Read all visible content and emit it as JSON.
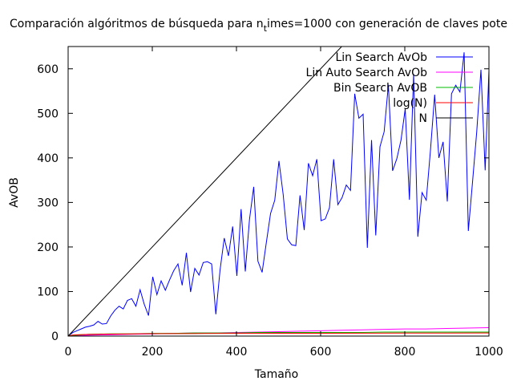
{
  "chart_data": {
    "type": "line",
    "title": "Comparación algóritmos de búsqueda para n",
    "title_sub": "t",
    "title_rest": "imes=1000 con generación de claves pote",
    "xlabel": "Tamaño",
    "ylabel": "AvOB",
    "xlim": [
      0,
      1000
    ],
    "ylim": [
      0,
      650
    ],
    "x_ticks": [
      0,
      200,
      400,
      600,
      800,
      1000
    ],
    "y_ticks": [
      0,
      100,
      200,
      300,
      400,
      500,
      600
    ],
    "grid": false,
    "legend_position": "top-right",
    "series": [
      {
        "name": "Lin Search AvOb",
        "color": "#0000ff",
        "x": [
          1,
          11,
          21,
          31,
          41,
          51,
          61,
          71,
          81,
          91,
          101,
          111,
          121,
          131,
          141,
          151,
          161,
          171,
          181,
          191,
          201,
          211,
          221,
          231,
          241,
          251,
          261,
          271,
          281,
          291,
          301,
          311,
          321,
          331,
          341,
          351,
          361,
          371,
          381,
          391,
          401,
          411,
          421,
          431,
          441,
          451,
          461,
          471,
          481,
          491,
          501,
          511,
          521,
          531,
          541,
          551,
          561,
          571,
          581,
          591,
          601,
          611,
          621,
          631,
          641,
          651,
          661,
          671,
          681,
          691,
          701,
          711,
          721,
          731,
          741,
          751,
          761,
          771,
          781,
          791,
          801,
          811,
          821,
          831,
          841,
          851,
          861,
          871,
          881,
          891,
          901,
          911,
          921,
          931,
          941,
          951,
          961,
          971,
          981,
          991,
          1000
        ],
        "y": [
          1,
          8,
          12,
          16,
          20,
          22,
          25,
          33,
          27,
          28,
          45,
          58,
          67,
          61,
          80,
          84,
          67,
          104,
          71,
          46,
          133,
          93,
          124,
          103,
          126,
          147,
          162,
          114,
          187,
          99,
          152,
          137,
          165,
          167,
          162,
          49,
          148,
          220,
          180,
          246,
          135,
          285,
          145,
          262,
          335,
          168,
          143,
          210,
          275,
          305,
          393,
          318,
          218,
          205,
          203,
          316,
          238,
          388,
          360,
          397,
          259,
          263,
          288,
          397,
          295,
          311,
          339,
          327,
          544,
          489,
          498,
          198,
          440,
          226,
          425,
          459,
          564,
          371,
          398,
          440,
          510,
          306,
          588,
          223,
          322,
          305,
          417,
          542,
          400,
          436,
          302,
          544,
          563,
          548,
          637,
          236,
          346,
          459,
          598,
          372,
          596
        ]
      },
      {
        "name": "Lin Auto Search AvOb",
        "color": "#ff00ff",
        "x": [
          1,
          50,
          100,
          150,
          200,
          250,
          300,
          350,
          400,
          450,
          500,
          550,
          600,
          650,
          700,
          750,
          800,
          850,
          900,
          950,
          1000
        ],
        "y": [
          1,
          2,
          3,
          4,
          5,
          6,
          7,
          7,
          8,
          9,
          10,
          11,
          12,
          13,
          14,
          15,
          16,
          16,
          17,
          18,
          19
        ]
      },
      {
        "name": "Bin Search AvOB",
        "color": "#00bb00",
        "x": [
          1,
          50,
          100,
          150,
          200,
          250,
          300,
          350,
          400,
          450,
          500,
          550,
          600,
          650,
          700,
          750,
          800,
          850,
          900,
          950,
          1000
        ],
        "y": [
          1,
          4,
          5,
          5,
          6,
          6,
          7,
          7,
          7,
          8,
          8,
          8,
          8,
          8,
          8,
          9,
          9,
          9,
          9,
          9,
          9
        ]
      },
      {
        "name": "log(N)",
        "color": "#ff0000",
        "x": [
          1,
          10,
          25,
          50,
          100,
          150,
          200,
          300,
          400,
          500,
          600,
          700,
          800,
          900,
          1000
        ],
        "y": [
          0,
          2.3,
          3.22,
          3.91,
          4.61,
          5.01,
          5.3,
          5.7,
          5.99,
          6.21,
          6.4,
          6.55,
          6.68,
          6.8,
          6.91
        ]
      },
      {
        "name": "N",
        "color": "#000000",
        "x": [
          0,
          1000
        ],
        "y": [
          0,
          1000
        ]
      }
    ]
  }
}
